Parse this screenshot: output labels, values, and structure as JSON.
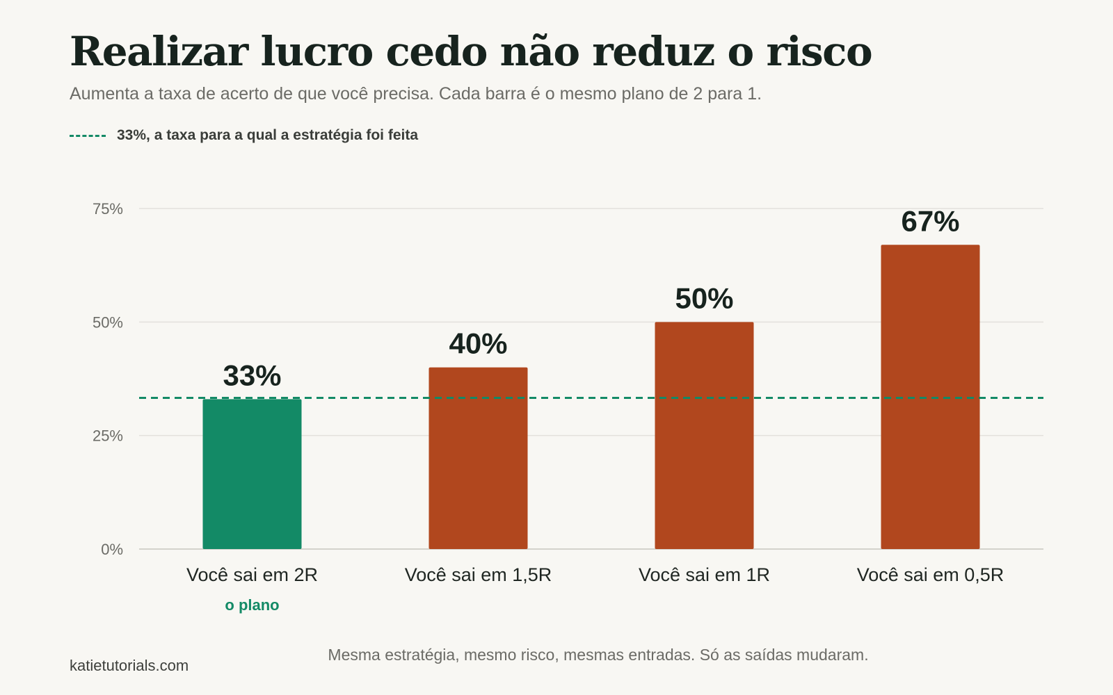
{
  "header": {
    "title": "Realizar lucro cedo não reduz o risco",
    "subtitle": "Aumenta a taxa de acerto de que você precisa. Cada barra é o mesmo plano de 2 para 1."
  },
  "legend": {
    "label": "33%, a taxa para a qual a estratégia foi feita"
  },
  "footer": {
    "source": "katietutorials.com",
    "note": "Mesma estratégia, mesmo risco, mesmas entradas. Só as saídas mudaram."
  },
  "colors": {
    "plan": "#138a66",
    "other": "#b1471e",
    "reference": "#138a66",
    "grid": "#e3e1dc",
    "label": "#17231e"
  },
  "chart_data": {
    "type": "bar",
    "categories": [
      "Você sai em 2R",
      "Você sai em 1,5R",
      "Você sai em 1R",
      "Você sai em 0,5R"
    ],
    "category_notes": [
      "o plano",
      "",
      "",
      ""
    ],
    "values": [
      33,
      40,
      50,
      67
    ],
    "value_labels": [
      "33%",
      "40%",
      "50%",
      "67%"
    ],
    "highlight_index": 0,
    "y_ticks": [
      0,
      25,
      50,
      75
    ],
    "y_tick_labels": [
      "0%",
      "25%",
      "50%",
      "75%"
    ],
    "ylim": [
      0,
      75
    ],
    "reference_line": {
      "value": 33.3,
      "label": "33%, a taxa para a qual a estratégia foi feita"
    },
    "grid": true,
    "legend_position": "top-left"
  }
}
